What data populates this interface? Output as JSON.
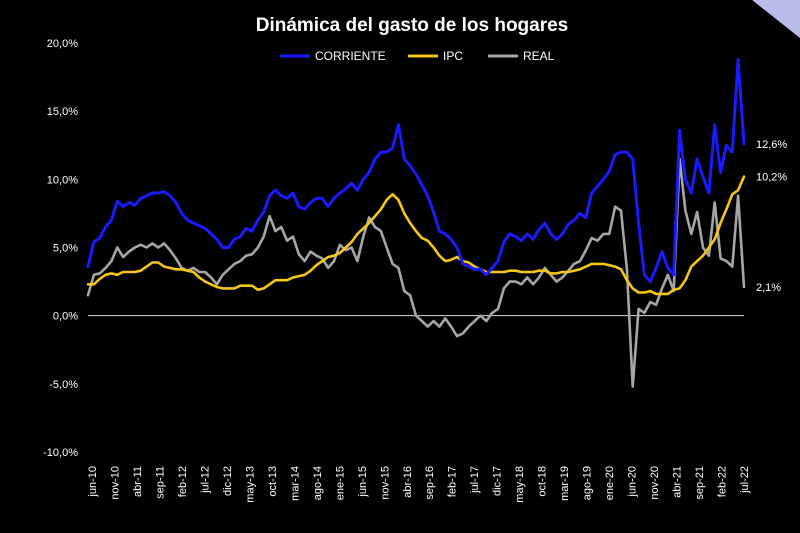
{
  "colors": {
    "background": "#000000",
    "corriente": "#1a1aff",
    "ipc": "#f5c518",
    "real": "#a6a6a6",
    "text": "#ffffff"
  },
  "chart_data": {
    "type": "line",
    "title": "Dinámica del gasto de los hogares",
    "legend_position": "top-center",
    "grid": false,
    "ylim": [
      -10,
      20
    ],
    "y_ticks": [
      "20,0%",
      "15,0%",
      "10,0%",
      "5,0%",
      "0,0%",
      "-5,0%",
      "-10,0%"
    ],
    "y_tick_values": [
      20,
      15,
      10,
      5,
      0,
      -5,
      -10
    ],
    "x_tick_labels": [
      "jun-10",
      "nov-10",
      "abr-11",
      "sep-11",
      "feb-12",
      "jul-12",
      "dic-12",
      "may-13",
      "oct-13",
      "mar-14",
      "ago-14",
      "ene-15",
      "jun-15",
      "nov-15",
      "abr-16",
      "sep-16",
      "feb-17",
      "jul-17",
      "dic-17",
      "may-18",
      "oct-18",
      "mar-19",
      "ago-19",
      "ene-20",
      "jun-20",
      "nov-20",
      "abr-21",
      "sep-21",
      "feb-22",
      "jul-22"
    ],
    "series": [
      {
        "name": "CORRIENTE",
        "end_label": "12,6%",
        "values": [
          3.6,
          5.4,
          5.7,
          6.5,
          7.0,
          8.4,
          8.0,
          8.3,
          8.1,
          8.6,
          8.8,
          9.0,
          9.0,
          9.1,
          8.8,
          8.3,
          7.5,
          7.0,
          6.8,
          6.6,
          6.4,
          6.0,
          5.6,
          5.0,
          5.0,
          5.6,
          5.8,
          6.4,
          6.2,
          7.0,
          7.6,
          8.8,
          9.2,
          8.8,
          8.6,
          9.0,
          8.0,
          7.8,
          8.3,
          8.6,
          8.6,
          8.0,
          8.6,
          9.0,
          9.3,
          9.7,
          9.2,
          10.0,
          10.5,
          11.5,
          12.0,
          12.0,
          12.3,
          14.0,
          11.5,
          11.0,
          10.4,
          9.6,
          8.8,
          7.6,
          6.2,
          6.0,
          5.6,
          5.0,
          3.8,
          3.6,
          3.4,
          3.4,
          3.0,
          3.5,
          4.0,
          5.4,
          6.0,
          5.8,
          5.5,
          6.0,
          5.6,
          6.3,
          6.8,
          6.0,
          5.6,
          6.0,
          6.7,
          7.0,
          7.5,
          7.2,
          9.0,
          9.5,
          10.0,
          10.6,
          11.8,
          12.0,
          12.0,
          11.5,
          6.8,
          3.0,
          2.5,
          3.5,
          4.7,
          3.5,
          3.0,
          13.6,
          10.0,
          9.0,
          11.5,
          10.2,
          9.0,
          14.0,
          10.5,
          12.5,
          12.0,
          18.8,
          12.6
        ]
      },
      {
        "name": "IPC",
        "end_label": "10,2%",
        "values": [
          2.3,
          2.3,
          2.7,
          3.0,
          3.1,
          3.0,
          3.2,
          3.2,
          3.2,
          3.3,
          3.6,
          3.9,
          3.9,
          3.6,
          3.5,
          3.4,
          3.4,
          3.3,
          3.2,
          2.8,
          2.5,
          2.3,
          2.1,
          2.0,
          2.0,
          2.0,
          2.2,
          2.2,
          2.2,
          1.9,
          2.0,
          2.3,
          2.6,
          2.6,
          2.6,
          2.8,
          2.9,
          3.0,
          3.3,
          3.7,
          4.0,
          4.3,
          4.4,
          4.6,
          5.0,
          5.4,
          6.0,
          6.4,
          6.8,
          7.3,
          7.8,
          8.5,
          8.9,
          8.5,
          7.5,
          6.8,
          6.2,
          5.7,
          5.5,
          5.0,
          4.4,
          4.0,
          4.1,
          4.3,
          4.0,
          3.9,
          3.6,
          3.4,
          3.2,
          3.2,
          3.2,
          3.2,
          3.3,
          3.3,
          3.2,
          3.2,
          3.2,
          3.3,
          3.3,
          3.1,
          3.1,
          3.2,
          3.2,
          3.3,
          3.4,
          3.6,
          3.8,
          3.8,
          3.8,
          3.7,
          3.6,
          3.4,
          2.6,
          2.0,
          1.7,
          1.7,
          1.8,
          1.6,
          1.6,
          1.6,
          1.9,
          2.0,
          2.6,
          3.6,
          4.0,
          4.4,
          5.0,
          5.6,
          6.8,
          7.8,
          8.9,
          9.2,
          10.2
        ]
      },
      {
        "name": "REAL",
        "end_label": "2,1%",
        "values": [
          1.5,
          3.0,
          3.1,
          3.5,
          4.0,
          5.0,
          4.3,
          4.7,
          5.0,
          5.2,
          5.0,
          5.3,
          5.0,
          5.3,
          4.8,
          4.2,
          3.5,
          3.3,
          3.5,
          3.2,
          3.2,
          2.8,
          2.3,
          3.0,
          3.4,
          3.8,
          4.0,
          4.4,
          4.5,
          5.0,
          5.8,
          7.3,
          6.2,
          6.5,
          5.5,
          5.8,
          4.5,
          4.0,
          4.7,
          4.4,
          4.2,
          3.5,
          4.0,
          5.2,
          4.8,
          5.0,
          4.0,
          5.8,
          7.2,
          6.5,
          6.2,
          5.0,
          3.8,
          3.5,
          1.8,
          1.5,
          0.0,
          -0.4,
          -0.8,
          -0.4,
          -0.8,
          -0.2,
          -0.8,
          -1.5,
          -1.3,
          -0.8,
          -0.4,
          0.0,
          -0.4,
          0.2,
          0.5,
          2.0,
          2.5,
          2.5,
          2.3,
          2.8,
          2.3,
          2.8,
          3.5,
          3.0,
          2.5,
          2.8,
          3.3,
          3.8,
          4.0,
          4.8,
          5.7,
          5.5,
          6.0,
          6.0,
          8.0,
          7.7,
          3.4,
          -5.2,
          0.5,
          0.2,
          1.0,
          0.8,
          2.0,
          3.0,
          1.8,
          11.5,
          7.7,
          6.0,
          7.6,
          5.0,
          4.4,
          8.3,
          4.2,
          4.0,
          3.6,
          8.8,
          2.1
        ]
      }
    ]
  }
}
